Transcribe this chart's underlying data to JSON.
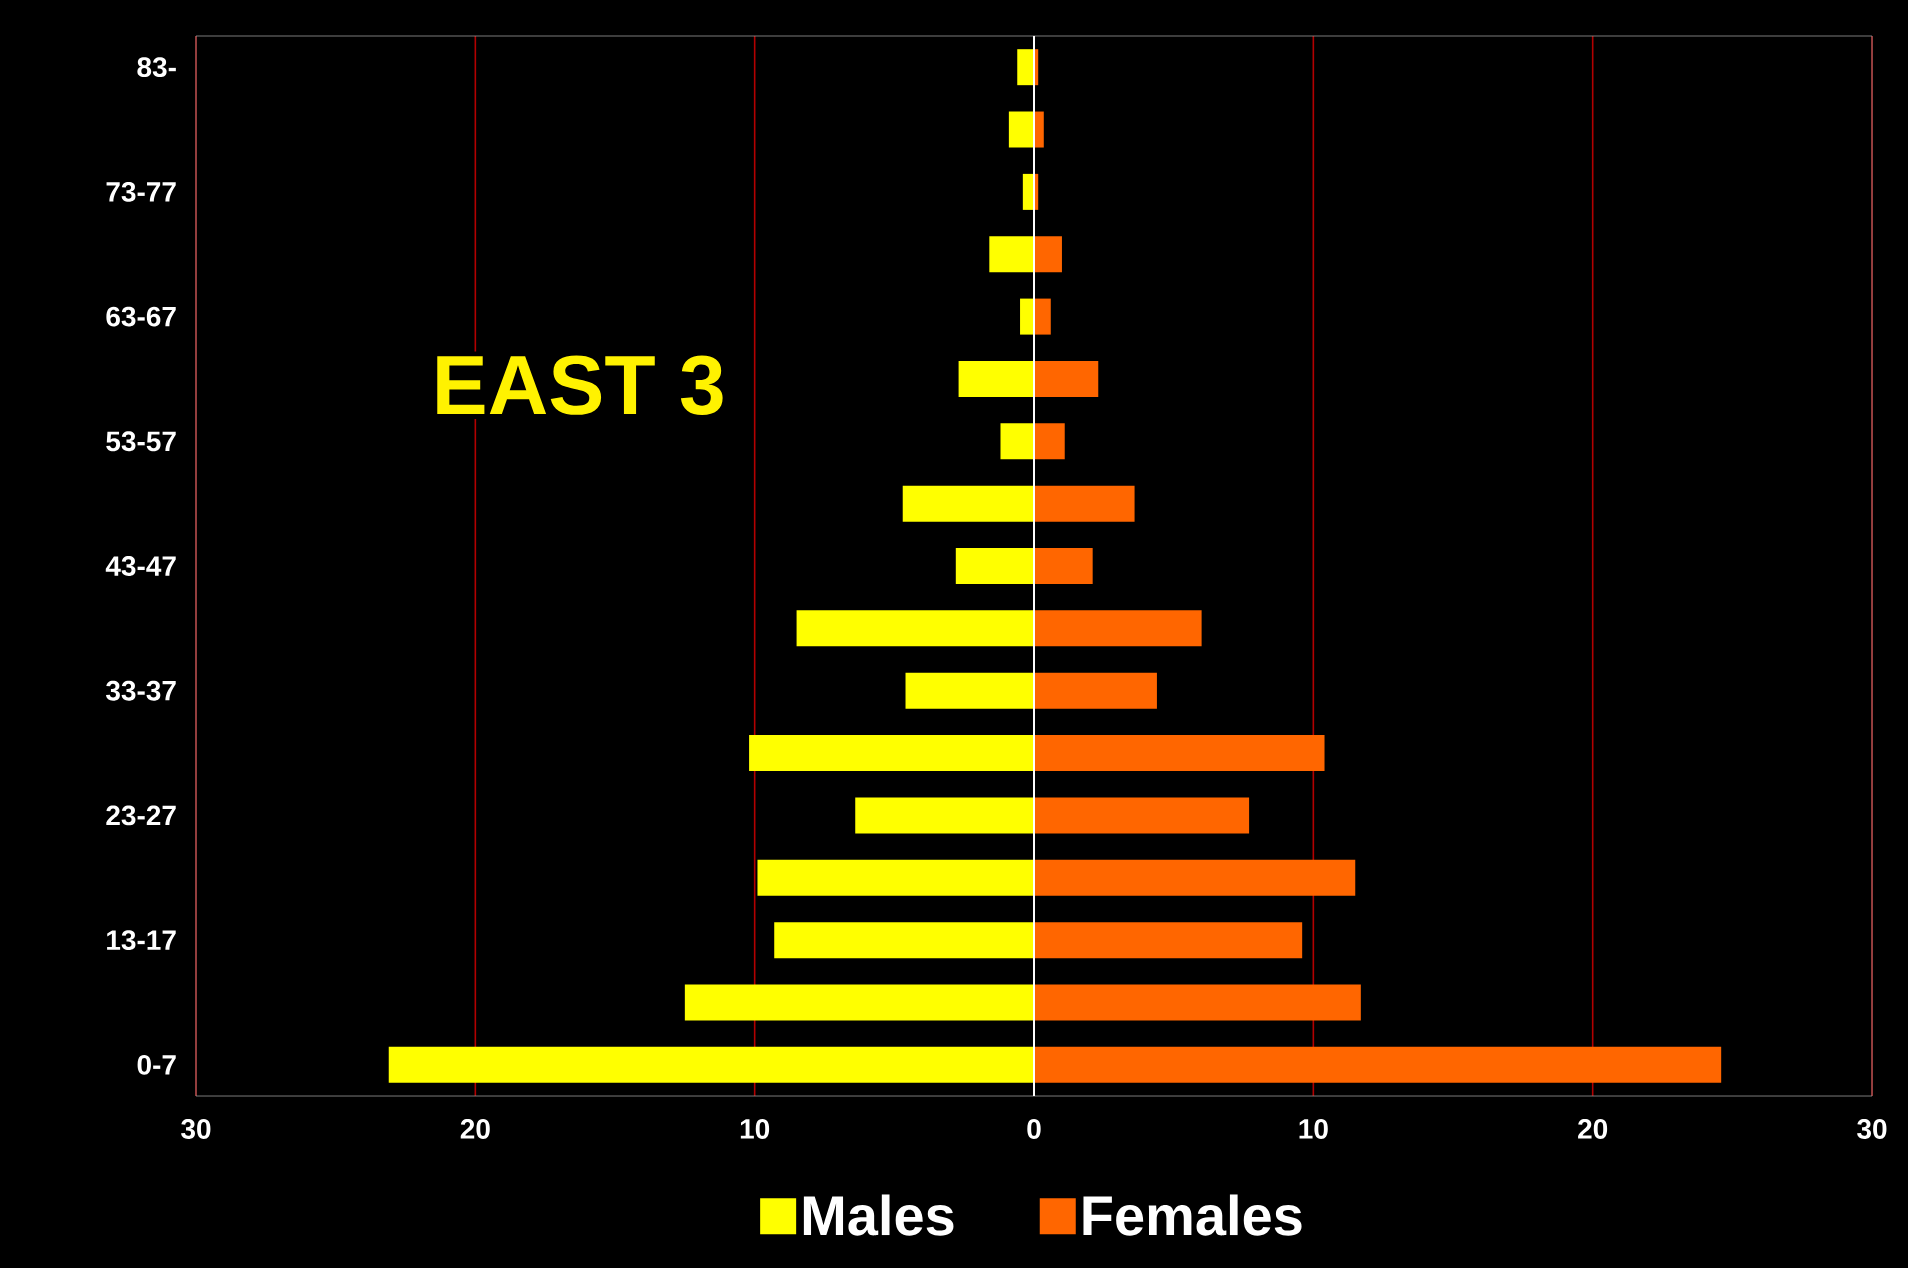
{
  "chart_data": {
    "type": "bar",
    "orientation": "horizontal",
    "title": "EAST 3",
    "categories": [
      "83-",
      null,
      "73-77",
      null,
      "63-67",
      null,
      "53-57",
      null,
      "43-47",
      null,
      "33-37",
      null,
      "23-27",
      null,
      "13-17",
      null,
      "0-7"
    ],
    "series": [
      {
        "name": "Males",
        "color": "#ffff00",
        "values": [
          -0.6,
          -0.9,
          -0.4,
          -1.6,
          -0.5,
          -2.7,
          -1.2,
          -4.7,
          -2.8,
          -8.5,
          -4.6,
          -10.2,
          -6.4,
          -9.9,
          -9.3,
          -12.5,
          -23.1
        ]
      },
      {
        "name": "Females",
        "color": "#ff6600",
        "values": [
          0.15,
          0.35,
          0.15,
          1.0,
          0.6,
          2.3,
          1.1,
          3.6,
          2.1,
          6.0,
          4.4,
          10.4,
          7.7,
          11.5,
          9.6,
          11.7,
          24.6
        ]
      }
    ],
    "xlim": [
      -30,
      30
    ],
    "xticks": [
      {
        "value": -30,
        "label": "30"
      },
      {
        "value": -20,
        "label": "20"
      },
      {
        "value": -10,
        "label": "10"
      },
      0,
      10,
      20,
      30
    ],
    "stacked": true,
    "grid": "x",
    "legend": "bottom"
  }
}
